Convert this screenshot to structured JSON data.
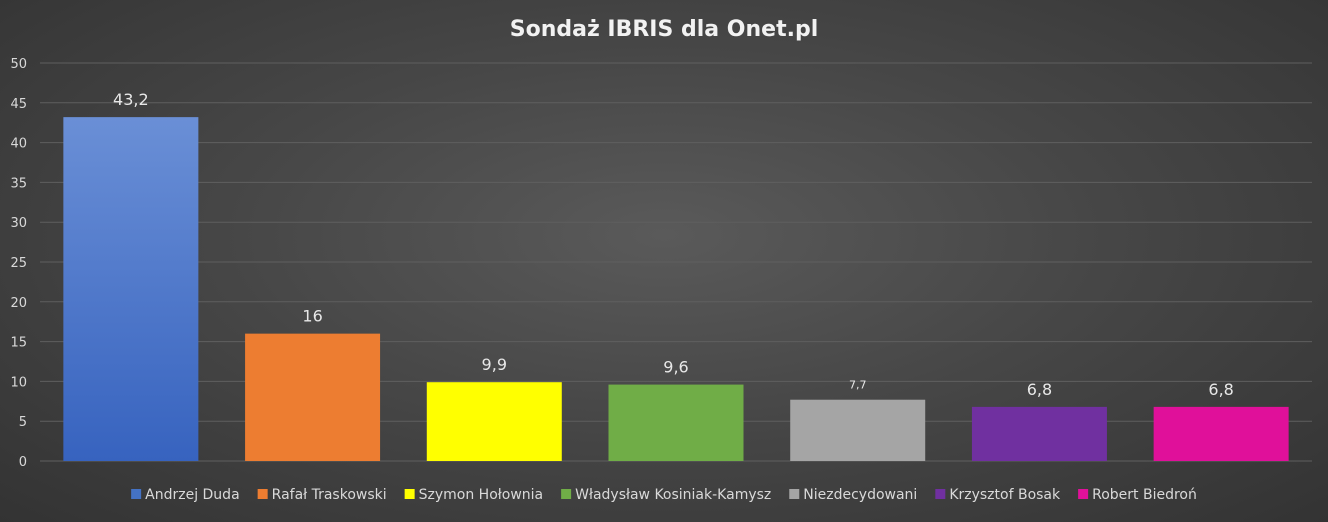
{
  "chart_data": {
    "type": "bar",
    "title": "Sondaż IBRIS dla Onet.pl",
    "xlabel": "",
    "ylabel": "",
    "ylim": [
      0,
      50
    ],
    "yticks": [
      0,
      5,
      10,
      15,
      20,
      25,
      30,
      35,
      40,
      45,
      50
    ],
    "grid": true,
    "legend_position": "bottom",
    "categories": [
      "Andrzej Duda",
      "Rafał Traskowski",
      "Szymon Hołownia",
      "Władysław Kosiniak-Kamysz",
      "Niezdecydowani",
      "Krzysztof Bosak",
      "Robert Biedroń"
    ],
    "values": [
      43.2,
      16,
      9.9,
      9.6,
      7.7,
      6.8,
      6.8
    ],
    "value_labels": [
      "43,2",
      "16",
      "9,9",
      "9,6",
      "7,7",
      "6,8",
      "6,8"
    ],
    "colors": [
      "#4472c4",
      "#ed7d31",
      "#ffff00",
      "#70ad47",
      "#a5a5a5",
      "#7030a0",
      "#e0109a"
    ]
  }
}
